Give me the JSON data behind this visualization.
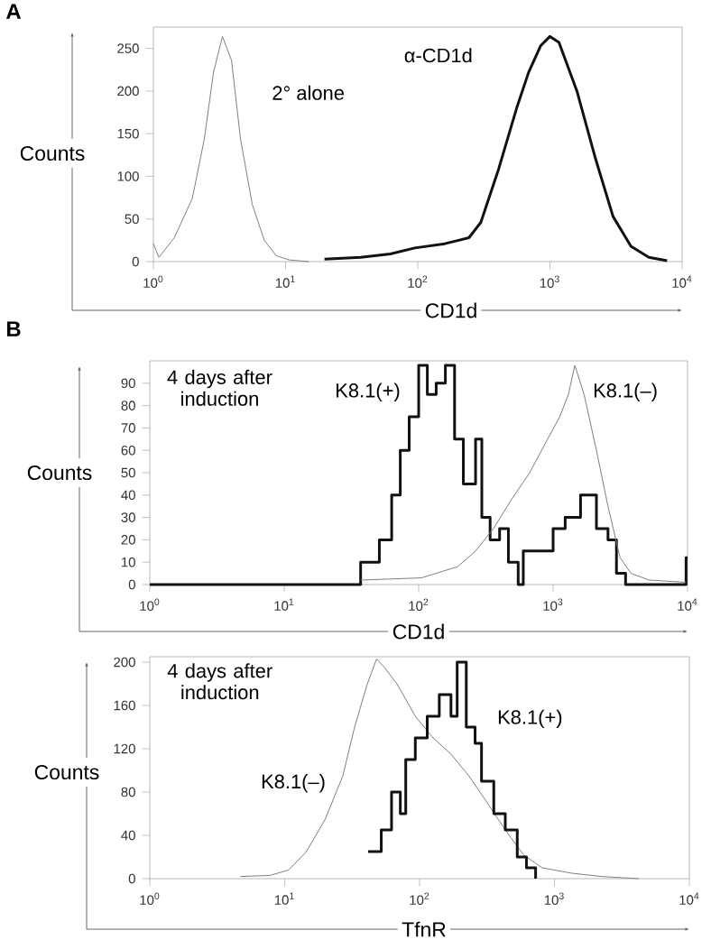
{
  "chart_data": [
    {
      "type": "line",
      "xlabel": "CD1d",
      "ylabel": "Counts",
      "annotations": [
        "A"
      ],
      "log": "x",
      "xlim": [
        1,
        10000
      ],
      "ylim": [
        0,
        275
      ],
      "xticks": [
        {
          "value": 1,
          "label": "10$^{0}$"
        },
        {
          "value": 10,
          "label": "10$^{1}$"
        },
        {
          "value": 100,
          "label": "10$^{2}$"
        },
        {
          "value": 1000,
          "label": "10$^{3}$"
        },
        {
          "value": 10000,
          "label": "10$^{4}$"
        }
      ],
      "yticks": [
        0,
        50,
        100,
        150,
        200,
        250
      ],
      "series": [
        {
          "name": "2° alone",
          "color": "#808080",
          "x": [
            1,
            1.1,
            1.44,
            1.97,
            2.43,
            2.85,
            3.33,
            3.9,
            4.56,
            5.6,
            6.9,
            8.5,
            10.6,
            15
          ],
          "values": [
            21,
            5,
            28,
            74,
            144,
            222,
            264,
            236,
            144,
            67,
            25,
            7,
            2,
            0
          ]
        },
        {
          "name": "α-CD1d",
          "color": "#111111",
          "x": [
            19.7,
            37,
            62,
            95,
            160,
            244,
            300,
            410,
            560,
            690,
            850,
            1000,
            1170,
            1600,
            2190,
            3000,
            4100,
            5600,
            7700
          ],
          "values": [
            3,
            5,
            9,
            16,
            21,
            28,
            46,
            109,
            180,
            222,
            253,
            264,
            257,
            200,
            123,
            53,
            18,
            5,
            1
          ]
        }
      ]
    },
    {
      "type": "line",
      "xlabel": "CD1d",
      "ylabel": "Counts",
      "annotations": [
        "B",
        "4 days after induction"
      ],
      "log": "x",
      "xlim": [
        1,
        10000
      ],
      "ylim": [
        0,
        100
      ],
      "xticks": [
        {
          "value": 1,
          "label": "10$^{0}$"
        },
        {
          "value": 10,
          "label": "10$^{1}$"
        },
        {
          "value": 100,
          "label": "10$^{2}$"
        },
        {
          "value": 1000,
          "label": "10$^{3}$"
        },
        {
          "value": 10000,
          "label": "10$^{4}$"
        }
      ],
      "yticks": [
        0,
        10,
        20,
        30,
        40,
        50,
        60,
        70,
        80,
        90
      ],
      "series": [
        {
          "name": "K8.1(+)",
          "type": "step",
          "color": "#111111",
          "x": [
            1,
            37,
            51,
            63,
            73,
            85,
            100,
            116,
            135,
            158,
            185,
            215,
            265,
            295,
            340,
            400,
            465,
            550,
            600,
            820,
            1000,
            1230,
            1600,
            2100,
            2560,
            2960,
            3460,
            9750,
            10000
          ],
          "values": [
            0,
            10,
            20,
            40,
            60,
            75,
            98,
            85,
            90,
            98,
            65,
            45,
            65,
            30,
            20,
            25,
            10,
            0,
            15,
            15,
            25,
            30,
            40,
            25,
            20,
            5,
            0,
            12,
            12
          ]
        },
        {
          "name": "K8.1(–)",
          "type": "line",
          "color": "#808080",
          "x": [
            37,
            105,
            195,
            265,
            360,
            490,
            670,
            910,
            1120,
            1300,
            1450,
            1700,
            2100,
            2560,
            3150,
            3800,
            5200,
            9750
          ],
          "values": [
            2,
            3,
            8,
            15,
            25,
            38,
            50,
            65,
            75,
            85,
            98,
            85,
            60,
            35,
            12,
            5,
            2,
            1
          ]
        }
      ]
    },
    {
      "type": "line",
      "xlabel": "TfnR",
      "ylabel": "Counts",
      "annotations": [
        "4 days after induction"
      ],
      "log": "x",
      "xlim": [
        1,
        10000
      ],
      "ylim": [
        0,
        205
      ],
      "xticks": [
        {
          "value": 1,
          "label": "10$^{0}$"
        },
        {
          "value": 10,
          "label": "10$^{1}$"
        },
        {
          "value": 100,
          "label": "10$^{2}$"
        },
        {
          "value": 1000,
          "label": "10$^{3}$"
        },
        {
          "value": 10000,
          "label": "10$^{4}$"
        }
      ],
      "yticks": [
        0,
        40,
        80,
        120,
        160,
        200
      ],
      "series": [
        {
          "name": "K8.1(–)",
          "type": "line",
          "color": "#808080",
          "x": [
            4.7,
            7.8,
            10.7,
            14.5,
            20,
            27,
            33,
            41,
            48,
            55,
            68,
            93,
            126,
            171,
            232,
            318,
            432,
            590,
            810,
            1350,
            2240,
            4200
          ],
          "values": [
            2,
            3,
            8,
            25,
            55,
            95,
            140,
            180,
            203,
            195,
            180,
            150,
            130,
            115,
            95,
            70,
            45,
            22,
            10,
            5,
            2,
            0
          ]
        },
        {
          "name": "K8.1(+)",
          "type": "step",
          "color": "#111111",
          "x": [
            41.6,
            52,
            62,
            72,
            79,
            93,
            114,
            140,
            171,
            190,
            222,
            258,
            288,
            355,
            432,
            530,
            620,
            725
          ],
          "values": [
            25,
            45,
            80,
            60,
            110,
            130,
            150,
            170,
            150,
            200,
            140,
            125,
            90,
            60,
            45,
            20,
            10,
            0
          ]
        }
      ]
    }
  ]
}
